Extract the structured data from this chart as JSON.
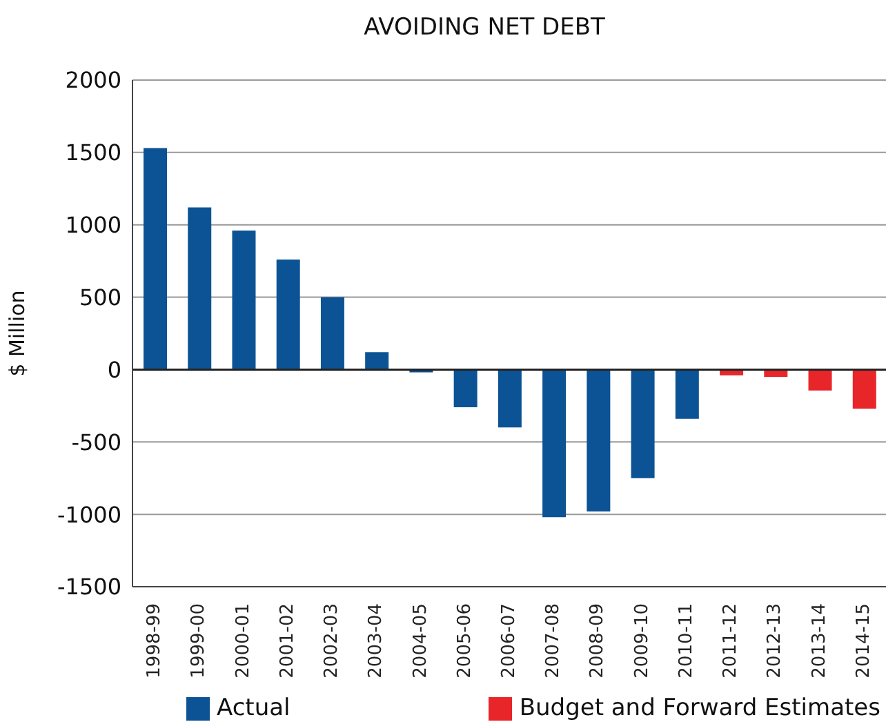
{
  "chart_data": {
    "type": "bar",
    "title": "AVOIDING NET DEBT",
    "ylabel": "$ Million",
    "categories": [
      "1998-99",
      "1999-00",
      "2000-01",
      "2001-02",
      "2002-03",
      "2003-04",
      "2004-05",
      "2005-06",
      "2006-07",
      "2007-08",
      "2008-09",
      "2009-10",
      "2010-11",
      "2011-12",
      "2012-13",
      "2013-14",
      "2014-15"
    ],
    "series": [
      {
        "name": "Actual",
        "color": "#0b5394",
        "values": [
          1530,
          1120,
          960,
          760,
          500,
          120,
          -20,
          -260,
          -400,
          -1020,
          -980,
          -750,
          -340,
          null,
          null,
          null,
          null
        ]
      },
      {
        "name": "Budget and Forward Estimates",
        "color": "#e8262a",
        "values": [
          null,
          null,
          null,
          null,
          null,
          null,
          null,
          null,
          null,
          null,
          null,
          null,
          null,
          -40,
          -50,
          -145,
          -270
        ]
      }
    ],
    "stacked": true,
    "ylim": [
      -1500,
      2000
    ],
    "yticks": [
      -1500,
      -1000,
      -500,
      0,
      500,
      1000,
      1500,
      2000
    ],
    "grid": "y",
    "legend": "bottom"
  }
}
